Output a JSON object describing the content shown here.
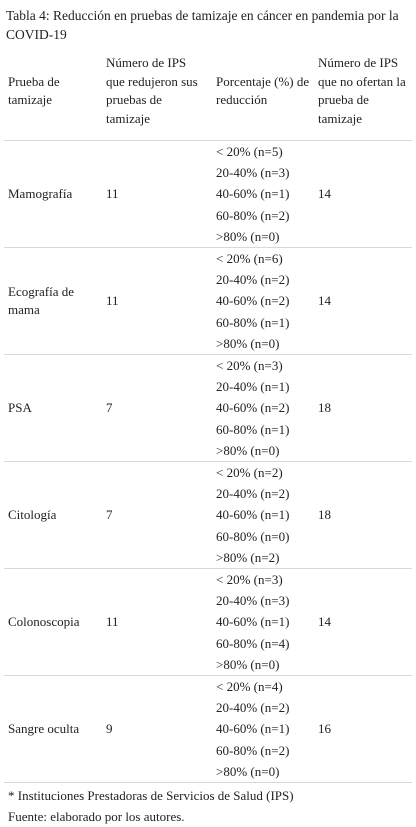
{
  "caption": "Tabla 4: Reducción en pruebas de tamizaje en cáncer en pandemia por la COVID-19",
  "headers": [
    "Prueba de tamizaje",
    "Número de IPS que redujeron sus pruebas de tamizaje",
    "Porcentaje (%) de reducción",
    "Número de IPS que no ofertan la prueba de tamizaje"
  ],
  "rows": [
    {
      "test": "Mamografía",
      "reduced": "11",
      "pct": [
        "< 20% (n=5)",
        "20-40% (n=3)",
        "40-60% (n=1)",
        "60-80% (n=2)",
        ">80% (n=0)"
      ],
      "not_offered": "14"
    },
    {
      "test": "Ecografía de mama",
      "reduced": "11",
      "pct": [
        "< 20% (n=6)",
        "20-40% (n=2)",
        "40-60% (n=2)",
        "60-80% (n=1)",
        ">80% (n=0)"
      ],
      "not_offered": "14"
    },
    {
      "test": "PSA",
      "reduced": "7",
      "pct": [
        "< 20% (n=3)",
        "20-40% (n=1)",
        "40-60% (n=2)",
        "60-80% (n=1)",
        ">80% (n=0)"
      ],
      "not_offered": "18"
    },
    {
      "test": "Citología",
      "reduced": "7",
      "pct": [
        "< 20% (n=2)",
        "20-40% (n=2)",
        "40-60% (n=1)",
        "60-80% (n=0)",
        ">80% (n=2)"
      ],
      "not_offered": "18"
    },
    {
      "test": "Colonoscopia",
      "reduced": "11",
      "pct": [
        "< 20% (n=3)",
        "20-40% (n=3)",
        "40-60% (n=1)",
        "60-80% (n=4)",
        ">80% (n=0)"
      ],
      "not_offered": "14"
    },
    {
      "test": "Sangre oculta",
      "reduced": "9",
      "pct": [
        "< 20% (n=4)",
        "20-40% (n=2)",
        "40-60% (n=1)",
        "60-80% (n=2)",
        ">80% (n=0)"
      ],
      "not_offered": "16"
    }
  ],
  "footnotes": [
    "* Instituciones Prestadoras de Servicios de Salud (IPS)",
    "Fuente: elaborado por los autores."
  ]
}
